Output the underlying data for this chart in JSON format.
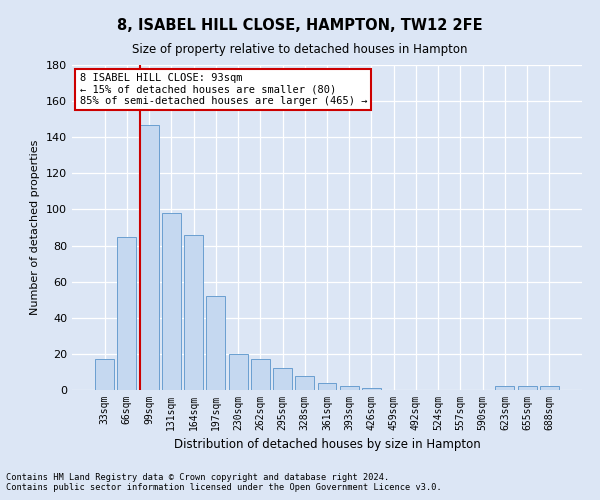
{
  "title": "8, ISABEL HILL CLOSE, HAMPTON, TW12 2FE",
  "subtitle": "Size of property relative to detached houses in Hampton",
  "xlabel": "Distribution of detached houses by size in Hampton",
  "ylabel": "Number of detached properties",
  "bar_labels": [
    "33sqm",
    "66sqm",
    "99sqm",
    "131sqm",
    "164sqm",
    "197sqm",
    "230sqm",
    "262sqm",
    "295sqm",
    "328sqm",
    "361sqm",
    "393sqm",
    "426sqm",
    "459sqm",
    "492sqm",
    "524sqm",
    "557sqm",
    "590sqm",
    "623sqm",
    "655sqm",
    "688sqm"
  ],
  "bar_values": [
    17,
    85,
    147,
    98,
    86,
    52,
    20,
    17,
    12,
    8,
    4,
    2,
    1,
    0,
    0,
    0,
    0,
    0,
    2,
    2,
    2
  ],
  "bar_color": "#c5d8f0",
  "bar_edge_color": "#6a9fd0",
  "background_color": "#dce6f5",
  "vline_x_index": 1.575,
  "annotation_title": "8 ISABEL HILL CLOSE: 93sqm",
  "annotation_line1": "← 15% of detached houses are smaller (80)",
  "annotation_line2": "85% of semi-detached houses are larger (465) →",
  "annotation_box_color": "#ffffff",
  "annotation_border_color": "#cc0000",
  "vline_color": "#cc0000",
  "ylim": [
    0,
    180
  ],
  "yticks": [
    0,
    20,
    40,
    60,
    80,
    100,
    120,
    140,
    160,
    180
  ],
  "footnote1": "Contains HM Land Registry data © Crown copyright and database right 2024.",
  "footnote2": "Contains public sector information licensed under the Open Government Licence v3.0."
}
